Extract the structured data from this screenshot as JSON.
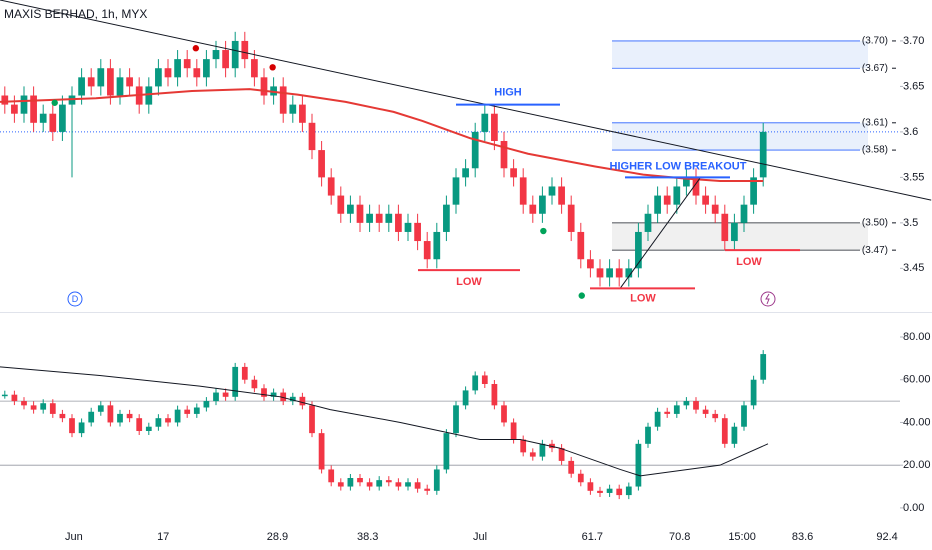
{
  "chart_data": {
    "type": "candlestick",
    "title": "MAXIS BERHAD, 1h, MYX",
    "xlim": [
      0,
      93.75
    ],
    "xticks": [
      {
        "value": 7.7,
        "label": "Jun"
      },
      17,
      28.9,
      38.3,
      {
        "value": 50,
        "label": "Jul"
      },
      61.7,
      70.8,
      {
        "value": 77.3,
        "label": "15:00"
      },
      83.6,
      92.4
    ],
    "ylim": [
      3.402,
      3.745
    ],
    "yticks": [
      3.45,
      3.5,
      3.55,
      3.6,
      3.65,
      {
        "value": 3.7,
        "label": "3.70"
      }
    ],
    "up_color": "#089981",
    "down_color": "#f23645",
    "open": [
      3.64,
      3.63,
      3.62,
      3.64,
      3.61,
      3.62,
      3.6,
      3.63,
      3.64,
      3.66,
      3.65,
      3.67,
      3.64,
      3.66,
      3.65,
      3.63,
      3.65,
      3.67,
      3.66,
      3.68,
      3.67,
      3.66,
      3.68,
      3.69,
      3.67,
      3.7,
      3.68,
      3.66,
      3.64,
      3.65,
      3.62,
      3.63,
      3.61,
      3.58,
      3.55,
      3.53,
      3.51,
      3.52,
      3.5,
      3.51,
      3.5,
      3.51,
      3.49,
      3.5,
      3.48,
      3.46,
      3.49,
      3.52,
      3.55,
      3.56,
      3.6,
      3.62,
      3.59,
      3.56,
      3.55,
      3.52,
      3.51,
      3.53,
      3.54,
      3.52,
      3.49,
      3.46,
      3.45,
      3.44,
      3.45,
      3.44,
      3.45,
      3.49,
      3.51,
      3.53,
      3.52,
      3.54,
      3.55,
      3.53,
      3.52,
      3.51,
      3.48,
      3.5,
      3.52,
      3.55
    ],
    "high": [
      3.65,
      3.64,
      3.65,
      3.65,
      3.63,
      3.63,
      3.64,
      3.65,
      3.67,
      3.67,
      3.68,
      3.68,
      3.67,
      3.67,
      3.66,
      3.66,
      3.68,
      3.68,
      3.69,
      3.69,
      3.68,
      3.69,
      3.7,
      3.7,
      3.71,
      3.71,
      3.69,
      3.67,
      3.66,
      3.66,
      3.64,
      3.64,
      3.62,
      3.59,
      3.56,
      3.54,
      3.53,
      3.53,
      3.52,
      3.52,
      3.52,
      3.52,
      3.51,
      3.51,
      3.49,
      3.5,
      3.53,
      3.56,
      3.57,
      3.61,
      3.63,
      3.63,
      3.6,
      3.57,
      3.56,
      3.53,
      3.54,
      3.55,
      3.55,
      3.53,
      3.5,
      3.47,
      3.46,
      3.46,
      3.46,
      3.46,
      3.5,
      3.52,
      3.54,
      3.54,
      3.55,
      3.56,
      3.56,
      3.54,
      3.53,
      3.52,
      3.51,
      3.53,
      3.56,
      3.61
    ],
    "low": [
      3.62,
      3.61,
      3.61,
      3.6,
      3.6,
      3.59,
      3.59,
      3.55,
      3.63,
      3.64,
      3.64,
      3.63,
      3.63,
      3.64,
      3.62,
      3.62,
      3.64,
      3.65,
      3.65,
      3.66,
      3.65,
      3.65,
      3.67,
      3.66,
      3.66,
      3.67,
      3.65,
      3.63,
      3.63,
      3.61,
      3.61,
      3.6,
      3.57,
      3.54,
      3.52,
      3.5,
      3.5,
      3.49,
      3.49,
      3.49,
      3.49,
      3.48,
      3.48,
      3.47,
      3.45,
      3.45,
      3.48,
      3.51,
      3.54,
      3.55,
      3.59,
      3.58,
      3.55,
      3.54,
      3.51,
      3.5,
      3.5,
      3.52,
      3.51,
      3.48,
      3.45,
      3.44,
      3.43,
      3.43,
      3.43,
      3.43,
      3.44,
      3.48,
      3.5,
      3.51,
      3.51,
      3.53,
      3.52,
      3.51,
      3.5,
      3.47,
      3.47,
      3.49,
      3.51,
      3.54
    ],
    "close": [
      3.63,
      3.62,
      3.64,
      3.61,
      3.62,
      3.6,
      3.63,
      3.64,
      3.66,
      3.65,
      3.67,
      3.64,
      3.66,
      3.65,
      3.63,
      3.65,
      3.67,
      3.66,
      3.68,
      3.67,
      3.66,
      3.68,
      3.69,
      3.67,
      3.7,
      3.68,
      3.66,
      3.64,
      3.65,
      3.62,
      3.63,
      3.61,
      3.58,
      3.55,
      3.53,
      3.51,
      3.52,
      3.5,
      3.51,
      3.5,
      3.51,
      3.49,
      3.5,
      3.48,
      3.46,
      3.49,
      3.52,
      3.55,
      3.56,
      3.6,
      3.62,
      3.59,
      3.56,
      3.55,
      3.52,
      3.51,
      3.53,
      3.54,
      3.52,
      3.49,
      3.46,
      3.45,
      3.44,
      3.45,
      3.44,
      3.45,
      3.49,
      3.51,
      3.53,
      3.52,
      3.54,
      3.55,
      3.53,
      3.52,
      3.51,
      3.48,
      3.5,
      3.52,
      3.55,
      3.6
    ],
    "moving_average": {
      "color": "#e53935",
      "x": [
        0,
        10,
        20,
        26,
        31,
        36,
        41,
        44,
        49,
        55,
        62,
        67,
        71,
        75,
        79.5
      ],
      "values": [
        3.633,
        3.637,
        3.645,
        3.647,
        3.641,
        3.633,
        3.622,
        3.612,
        3.593,
        3.576,
        3.562,
        3.553,
        3.549,
        3.546,
        3.546
      ]
    },
    "last_price": {
      "value": 3.6,
      "color": "#2962ff"
    },
    "trendlines": [
      {
        "color": "#131722",
        "x": [
          0,
          97
        ],
        "y": [
          3.745,
          3.525
        ]
      },
      {
        "color": "#131722",
        "x": [
          64.6,
          72.9
        ],
        "y": [
          3.428,
          3.549
        ]
      }
    ],
    "levels": [
      {
        "value": 3.7,
        "label": "(3.70)",
        "color": "#2962ff"
      },
      {
        "value": 3.67,
        "label": "(3.67)",
        "color": "#2962ff"
      },
      {
        "value": 3.61,
        "label": "(3.61)",
        "color": "#2962ff"
      },
      {
        "value": 3.58,
        "label": "(3.58)",
        "color": "#2962ff"
      },
      {
        "value": 3.5,
        "label": "(3.50)",
        "color": "#131722"
      },
      {
        "value": 3.47,
        "label": "(3.47)",
        "color": "#131722"
      }
    ],
    "annotations": [
      {
        "text": "HIGH",
        "value": 3.63,
        "color": "#2962ff"
      },
      {
        "text": "LOW",
        "value": 3.448,
        "color": "#f23645"
      },
      {
        "text": "LOW",
        "value": 3.428,
        "color": "#f23645"
      },
      {
        "text": "LOW",
        "value": 3.47,
        "color": "#f23645"
      },
      {
        "text": "HIGHER LOW BREAKOUT",
        "value": 3.55,
        "color": "#2962ff"
      }
    ],
    "signals": [
      {
        "x": 20.4,
        "value": 3.692,
        "color": "#d50000"
      },
      {
        "x": 28.4,
        "value": 3.671,
        "color": "#d50000"
      },
      {
        "x": 5.7,
        "value": 3.632,
        "color": "#00a35a"
      },
      {
        "x": 56.6,
        "value": 3.491,
        "color": "#00a35a"
      },
      {
        "x": 60.6,
        "value": 3.42,
        "color": "#00a35a"
      }
    ],
    "oscillator": {
      "ylim": [
        -8,
        91.7
      ],
      "yticks": [
        {
          "value": 0,
          "label": "0.00"
        },
        {
          "value": 20,
          "label": "20.00"
        },
        {
          "value": 40,
          "label": "40.00"
        },
        {
          "value": 60,
          "label": "60.00"
        },
        {
          "value": 80,
          "label": "80.00"
        }
      ],
      "bands": [
        20,
        50
      ],
      "values": [
        53,
        50,
        48,
        46,
        49,
        44,
        42,
        35,
        40,
        45,
        48,
        40,
        44,
        42,
        36,
        38,
        42,
        40,
        46,
        44,
        47,
        50,
        54,
        52,
        66,
        60,
        56,
        52,
        54,
        50,
        52,
        48,
        35,
        18,
        12,
        10,
        14,
        12,
        10,
        13,
        12,
        10,
        12,
        9,
        8,
        18,
        35,
        48,
        55,
        62,
        58,
        48,
        40,
        32,
        26,
        24,
        30,
        28,
        22,
        16,
        12,
        8,
        7,
        9,
        6,
        10,
        30,
        38,
        45,
        44,
        48,
        50,
        46,
        44,
        42,
        30,
        38,
        48,
        60,
        72
      ],
      "signal": {
        "color": "#131722",
        "x": [
          0,
          10.4,
          20.8,
          29.2,
          34.4,
          41.7,
          50,
          54.2,
          58.3,
          64.6,
          66.7,
          75,
          80
        ],
        "values": [
          66,
          62,
          57,
          52,
          46,
          40,
          32,
          32,
          28,
          18,
          15,
          20,
          30
        ]
      }
    }
  }
}
